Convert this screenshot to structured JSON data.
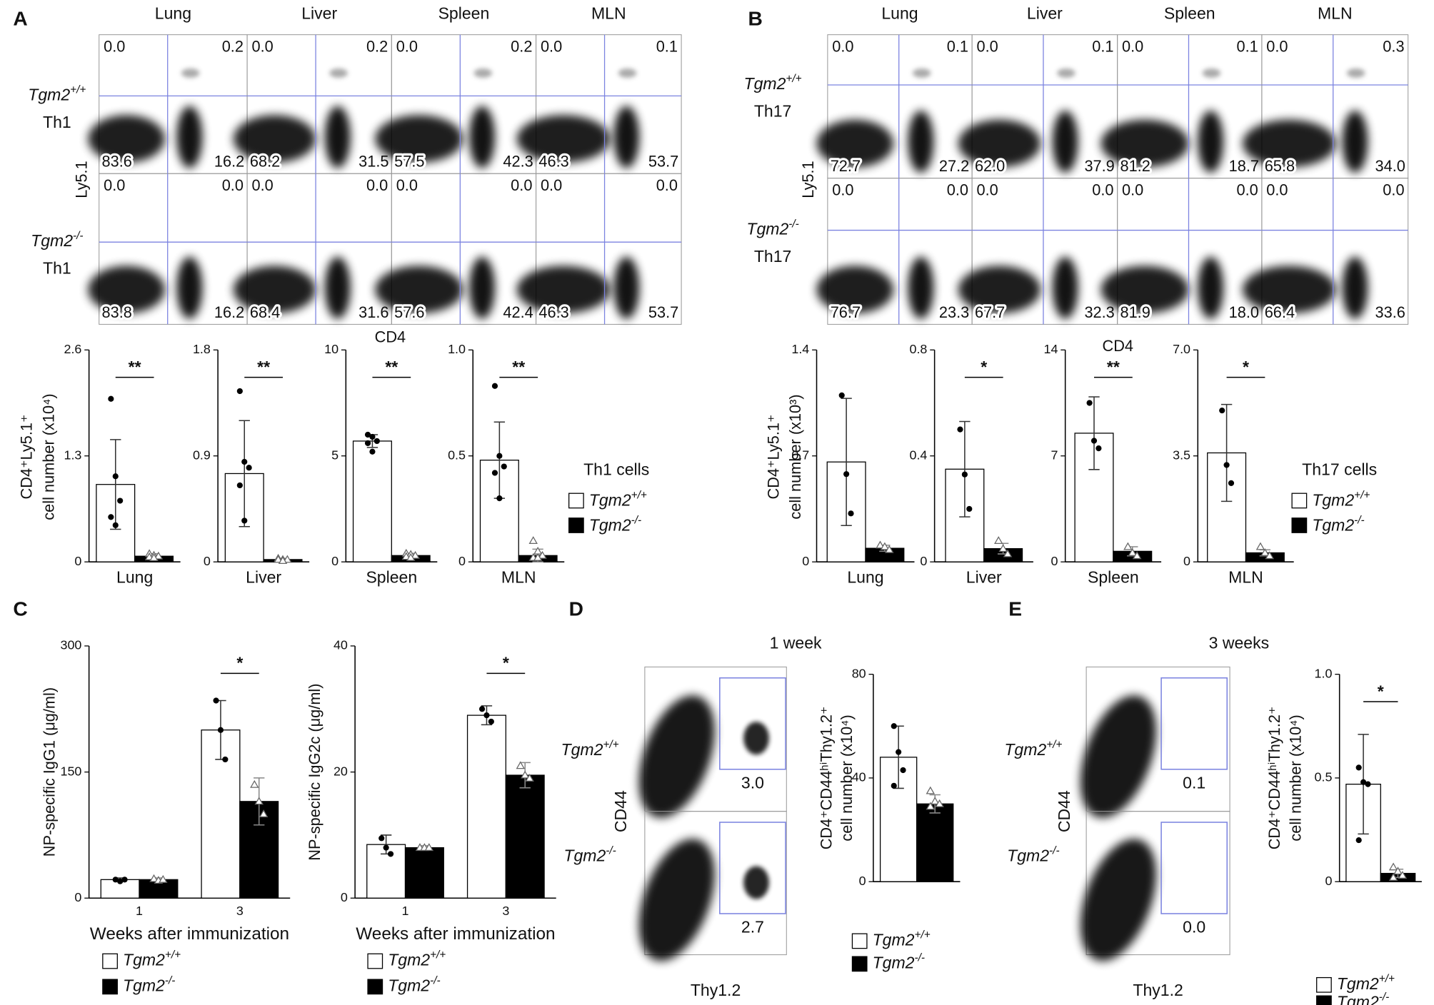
{
  "panels": {
    "A": {
      "label": "A",
      "columns": [
        "Lung",
        "Liver",
        "Spleen",
        "MLN"
      ],
      "rows": [
        {
          "genotype": "Tgm2+/+",
          "cell": "Th1",
          "quadrants": [
            [
              "0.0",
              "0.2",
              "83.6",
              "16.2"
            ],
            [
              "0.0",
              "0.2",
              "68.2",
              "31.5"
            ],
            [
              "0.0",
              "0.2",
              "57.5",
              "42.3"
            ],
            [
              "0.0",
              "0.1",
              "46.3",
              "53.7"
            ]
          ]
        },
        {
          "genotype": "Tgm2-/-",
          "cell": "Th1",
          "quadrants": [
            [
              "0.0",
              "0.0",
              "83.8",
              "16.2"
            ],
            [
              "0.0",
              "0.0",
              "68.4",
              "31.6"
            ],
            [
              "0.0",
              "0.0",
              "57.6",
              "42.4"
            ],
            [
              "0.0",
              "0.0",
              "46.3",
              "53.7"
            ]
          ]
        }
      ],
      "y_axis": "Ly5.1",
      "x_axis": "CD4",
      "ylabel": [
        "CD4⁺Ly5.1⁺",
        "cell number (x10⁴)"
      ],
      "legend": {
        "title": "Th1 cells",
        "entries": [
          "Tgm2+/+",
          "Tgm2-/-"
        ]
      }
    },
    "B": {
      "label": "B",
      "columns": [
        "Lung",
        "Liver",
        "Spleen",
        "MLN"
      ],
      "rows": [
        {
          "genotype": "Tgm2+/+",
          "cell": "Th17",
          "quadrants": [
            [
              "0.0",
              "0.1",
              "72.7",
              "27.2"
            ],
            [
              "0.0",
              "0.1",
              "62.0",
              "37.9"
            ],
            [
              "0.0",
              "0.1",
              "81.2",
              "18.7"
            ],
            [
              "0.0",
              "0.3",
              "65.8",
              "34.0"
            ]
          ]
        },
        {
          "genotype": "Tgm2-/-",
          "cell": "Th17",
          "quadrants": [
            [
              "0.0",
              "0.0",
              "76.7",
              "23.3"
            ],
            [
              "0.0",
              "0.0",
              "67.7",
              "32.3"
            ],
            [
              "0.0",
              "0.0",
              "81.9",
              "18.0"
            ],
            [
              "0.0",
              "0.0",
              "66.4",
              "33.6"
            ]
          ]
        }
      ],
      "y_axis": "Ly5.1",
      "x_axis": "CD4",
      "ylabel": [
        "CD4⁺Ly5.1⁺",
        "cell number (x10³)"
      ],
      "legend": {
        "title": "Th17 cells",
        "entries": [
          "Tgm2+/+",
          "Tgm2-/-"
        ]
      }
    },
    "C": {
      "label": "C"
    },
    "D": {
      "label": "D",
      "title": "1 week",
      "rows": [
        {
          "genotype": "Tgm2+/+",
          "gate": "3.0"
        },
        {
          "genotype": "Tgm2-/-",
          "gate": "2.7"
        }
      ],
      "y_axis": "CD44",
      "x_axis": "Thy1.2"
    },
    "E": {
      "label": "E",
      "title": "3 weeks",
      "rows": [
        {
          "genotype": "Tgm2+/+",
          "gate": "0.1"
        },
        {
          "genotype": "Tgm2-/-",
          "gate": "0.0"
        }
      ],
      "y_axis": "CD44",
      "x_axis": "Thy1.2"
    }
  },
  "chart_data": [
    {
      "type": "bar",
      "categories": [
        "Lung"
      ],
      "ylim": [
        0,
        2.6
      ],
      "yticks": [
        0,
        1.3,
        2.6
      ],
      "significance": [
        "**"
      ],
      "series": [
        {
          "color": "#ffffff",
          "values": [
            0.95
          ],
          "errors": [
            0.55
          ],
          "points": [
            [
              2.0,
              1.05,
              0.75,
              0.55,
              0.45
            ]
          ]
        },
        {
          "color": "#000000",
          "values": [
            0.07
          ],
          "errors": [
            0.03
          ],
          "points": [
            [
              0.1,
              0.08,
              0.07,
              0.06,
              0.05
            ]
          ]
        }
      ]
    },
    {
      "type": "bar",
      "categories": [
        "Liver"
      ],
      "ylim": [
        0,
        1.8
      ],
      "yticks": [
        0,
        0.9,
        1.8
      ],
      "significance": [
        "**"
      ],
      "series": [
        {
          "color": "#ffffff",
          "values": [
            0.75
          ],
          "errors": [
            0.45
          ],
          "points": [
            [
              1.45,
              0.85,
              0.8,
              0.65,
              0.35
            ]
          ]
        },
        {
          "color": "#000000",
          "values": [
            0.02
          ],
          "errors": [
            0.01
          ],
          "points": [
            [
              0.03,
              0.02,
              0.02,
              0.02,
              0.01
            ]
          ]
        }
      ]
    },
    {
      "type": "bar",
      "categories": [
        "Spleen"
      ],
      "ylim": [
        0,
        10
      ],
      "yticks": [
        0,
        5,
        10
      ],
      "significance": [
        "**"
      ],
      "series": [
        {
          "color": "#ffffff",
          "values": [
            5.7
          ],
          "errors": [
            0.3
          ],
          "points": [
            [
              6.0,
              5.9,
              5.7,
              5.6,
              5.2
            ]
          ]
        },
        {
          "color": "#000000",
          "values": [
            0.3
          ],
          "errors": [
            0.1
          ],
          "points": [
            [
              0.4,
              0.35,
              0.3,
              0.25,
              0.2
            ]
          ]
        }
      ]
    },
    {
      "type": "bar",
      "categories": [
        "MLN"
      ],
      "ylim": [
        0,
        1
      ],
      "yticks": [
        0,
        0.5,
        {
          "value": 1,
          "label": "1.0"
        }
      ],
      "significance": [
        "**"
      ],
      "series": [
        {
          "color": "#ffffff",
          "values": [
            0.48
          ],
          "errors": [
            0.18
          ],
          "points": [
            [
              0.83,
              0.5,
              0.45,
              0.42,
              0.3
            ]
          ]
        },
        {
          "color": "#000000",
          "values": [
            0.03
          ],
          "errors": [
            0.03
          ],
          "points": [
            [
              0.1,
              0.05,
              0.03,
              0.02,
              0.02
            ]
          ]
        }
      ]
    },
    {
      "type": "bar",
      "categories": [
        "Lung"
      ],
      "ylim": [
        0,
        1.4
      ],
      "yticks": [
        0,
        0.7,
        1.4
      ],
      "significance": [
        null
      ],
      "series": [
        {
          "color": "#ffffff",
          "values": [
            0.66
          ],
          "errors": [
            0.42
          ],
          "points": [
            [
              1.1,
              0.58,
              0.32
            ]
          ]
        },
        {
          "color": "#000000",
          "values": [
            0.09
          ],
          "errors": [
            0.02
          ],
          "points": [
            [
              0.11,
              0.1,
              0.08
            ]
          ]
        }
      ]
    },
    {
      "type": "bar",
      "categories": [
        "Liver"
      ],
      "ylim": [
        0,
        0.8
      ],
      "yticks": [
        0,
        0.4,
        0.8
      ],
      "significance": [
        "*"
      ],
      "series": [
        {
          "color": "#ffffff",
          "values": [
            0.35
          ],
          "errors": [
            0.18
          ],
          "points": [
            [
              0.5,
              0.33,
              0.2
            ]
          ]
        },
        {
          "color": "#000000",
          "values": [
            0.05
          ],
          "errors": [
            0.02
          ],
          "points": [
            [
              0.08,
              0.05,
              0.03
            ]
          ]
        }
      ]
    },
    {
      "type": "bar",
      "categories": [
        "Spleen"
      ],
      "ylim": [
        0,
        14
      ],
      "yticks": [
        0,
        7,
        14
      ],
      "significance": [
        "**"
      ],
      "series": [
        {
          "color": "#ffffff",
          "values": [
            8.5
          ],
          "errors": [
            2.4
          ],
          "points": [
            [
              10.5,
              8.0,
              7.5
            ]
          ]
        },
        {
          "color": "#000000",
          "values": [
            0.7
          ],
          "errors": [
            0.3
          ],
          "points": [
            [
              1.0,
              0.6,
              0.4
            ]
          ]
        }
      ]
    },
    {
      "type": "bar",
      "categories": [
        "MLN"
      ],
      "ylim": [
        0,
        7
      ],
      "yticks": [
        0,
        3.5,
        {
          "value": 7,
          "label": "7.0"
        }
      ],
      "significance": [
        "*"
      ],
      "series": [
        {
          "color": "#ffffff",
          "values": [
            3.6
          ],
          "errors": [
            1.6
          ],
          "points": [
            [
              5.0,
              3.2,
              2.6
            ]
          ]
        },
        {
          "color": "#000000",
          "values": [
            0.3
          ],
          "errors": [
            0.1
          ],
          "points": [
            [
              0.5,
              0.3,
              0.2
            ]
          ]
        }
      ]
    },
    {
      "type": "bar",
      "categories": [
        "1",
        "3"
      ],
      "ylim": [
        0,
        300
      ],
      "yticks": [
        0,
        150,
        300
      ],
      "significance": [
        null,
        "*"
      ],
      "xlabel": "Weeks after immunization",
      "ylabel": "NP-specific IgG1  (μg/ml)",
      "series": [
        {
          "name": "Tgm2+/+",
          "color": "#ffffff",
          "values": [
            22,
            200
          ],
          "errors": [
            2,
            35
          ],
          "points": [
            [
              22,
              20,
              22
            ],
            [
              235,
              200,
              165
            ]
          ]
        },
        {
          "name": "Tgm2-/-",
          "color": "#000000",
          "values": [
            22,
            115
          ],
          "errors": [
            2,
            28
          ],
          "points": [
            [
              23,
              21,
              22
            ],
            [
              135,
              115,
              100
            ]
          ]
        }
      ]
    },
    {
      "type": "bar",
      "categories": [
        "1",
        "3"
      ],
      "ylim": [
        0,
        40
      ],
      "yticks": [
        0,
        20,
        40
      ],
      "significance": [
        null,
        "*"
      ],
      "xlabel": "Weeks after immunization",
      "ylabel": "NP-specific IgG2c  (μg/ml)",
      "series": [
        {
          "name": "Tgm2+/+",
          "color": "#ffffff",
          "values": [
            8.5,
            29
          ],
          "errors": [
            1.5,
            1.5
          ],
          "points": [
            [
              9.5,
              8,
              7
            ],
            [
              30,
              29,
              28
            ]
          ]
        },
        {
          "name": "Tgm2-/-",
          "color": "#000000",
          "values": [
            8,
            19.5
          ],
          "errors": [
            0.3,
            2
          ],
          "points": [
            [
              8,
              8,
              8
            ],
            [
              21,
              19.5,
              19
            ]
          ]
        }
      ]
    },
    {
      "type": "bar",
      "categories": [
        null
      ],
      "ylim": [
        0,
        80
      ],
      "yticks": [
        0,
        40,
        80
      ],
      "significance": [
        null
      ],
      "ylabel": [
        "CD4⁺CD44ʰⁱThy1.2⁺",
        "cell number (x10⁴)"
      ],
      "series": [
        {
          "name": "Tgm2+/+",
          "color": "#ffffff",
          "values": [
            48
          ],
          "errors": [
            12
          ],
          "points": [
            [
              60,
              50,
              43,
              37
            ]
          ]
        },
        {
          "name": "Tgm2-/-",
          "color": "#000000",
          "values": [
            30
          ],
          "errors": [
            3.5
          ],
          "points": [
            [
              35,
              31,
              30,
              29
            ]
          ]
        }
      ]
    },
    {
      "type": "bar",
      "categories": [
        null
      ],
      "ylim": [
        0,
        1
      ],
      "yticks": [
        0,
        0.5,
        {
          "value": 1,
          "label": "1.0"
        }
      ],
      "significance": [
        "*"
      ],
      "ylabel": [
        "CD4⁺CD44ʰⁱThy1.2⁺",
        "cell number (x10⁴)"
      ],
      "series": [
        {
          "name": "Tgm2+/+",
          "color": "#ffffff",
          "values": [
            0.47
          ],
          "errors": [
            0.24
          ],
          "points": [
            [
              0.55,
              0.48,
              0.47,
              0.2
            ]
          ]
        },
        {
          "name": "Tgm2-/-",
          "color": "#000000",
          "values": [
            0.04
          ],
          "errors": [
            0.02
          ],
          "points": [
            [
              0.07,
              0.05,
              0.03,
              0.02
            ]
          ]
        }
      ]
    }
  ]
}
